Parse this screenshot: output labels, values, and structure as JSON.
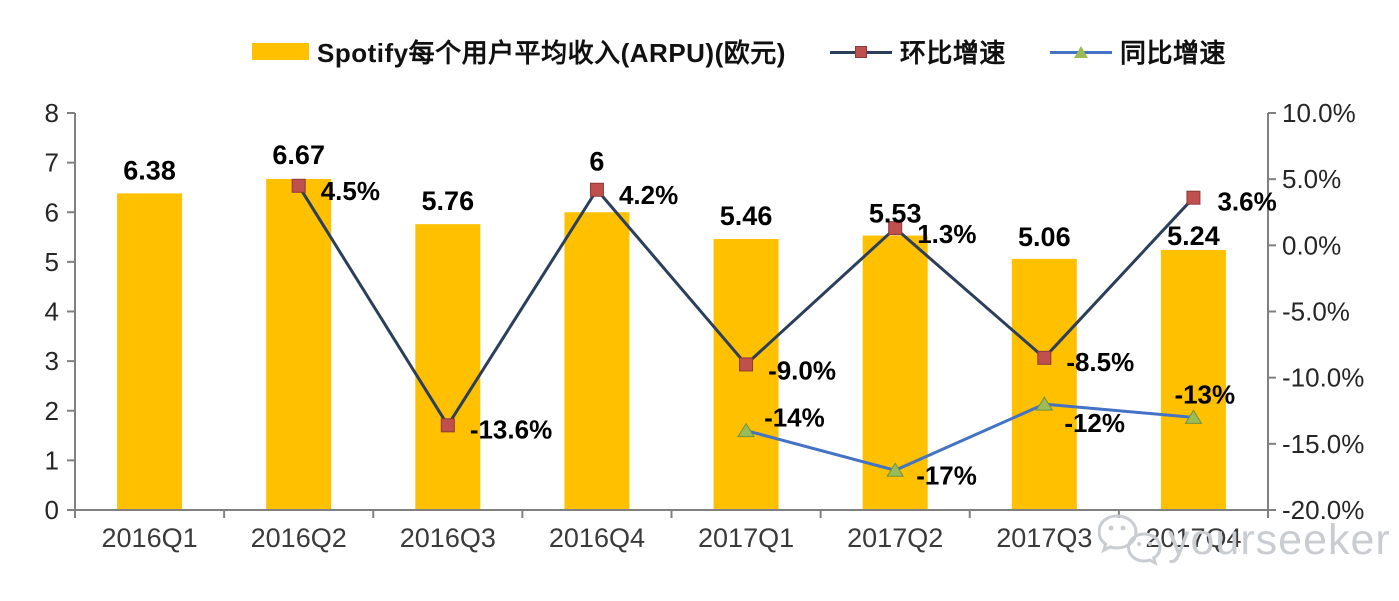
{
  "legend": {
    "items": [
      {
        "label": "Spotify每个用户平均收入(ARPU)(欧元)",
        "swatch": "bar",
        "color": "#FFC000"
      },
      {
        "label": "环比增速",
        "swatch": "line-square",
        "line_color": "#2B3E5C",
        "marker_color": "#C0504D"
      },
      {
        "label": "同比增速",
        "swatch": "line-triangle",
        "line_color": "#4472C4",
        "marker_color": "#9BBB59"
      }
    ]
  },
  "watermark": {
    "text": "yourseeker",
    "icon": "wechat-icon",
    "color": "#c9cdd1"
  },
  "chart_data": {
    "type": "bar",
    "subtype": "combo-bar-line-dual-axis",
    "title": "Spotify每个用户平均收入(ARPU)(欧元)",
    "categories": [
      "2016Q1",
      "2016Q2",
      "2016Q3",
      "2016Q4",
      "2017Q1",
      "2017Q2",
      "2017Q3",
      "2017Q4"
    ],
    "series": [
      {
        "name": "Spotify每个用户平均收入(ARPU)(欧元)",
        "type": "bar",
        "axis": "left",
        "color": "#FFC000",
        "values": [
          6.38,
          6.67,
          5.76,
          6,
          5.46,
          5.53,
          5.06,
          5.24
        ],
        "value_labels": [
          "6.38",
          "6.67",
          "5.76",
          "6",
          "5.46",
          "5.53",
          "5.06",
          "5.24"
        ],
        "label_dy": [
          -14,
          -15,
          -14,
          -42,
          -14,
          -13,
          -13,
          -5
        ]
      },
      {
        "name": "环比增速",
        "type": "line",
        "axis": "right",
        "marker": "square",
        "line_color": "#2B3E5C",
        "marker_color": "#C0504D",
        "marker_stroke": "#8B3A38",
        "values": [
          null,
          4.5,
          -13.6,
          4.2,
          -9.0,
          1.3,
          -8.5,
          3.6
        ],
        "value_labels": [
          null,
          "4.5%",
          "-13.6%",
          "4.2%",
          "-9.0%",
          "1.3%",
          "-8.5%",
          "3.6%"
        ],
        "label_dx": [
          null,
          22,
          22,
          22,
          22,
          22,
          22,
          24
        ],
        "label_dy": [
          null,
          14,
          13,
          14,
          15,
          15,
          13,
          13
        ]
      },
      {
        "name": "同比增速",
        "type": "line",
        "axis": "right",
        "marker": "triangle",
        "line_color": "#4472C4",
        "marker_color": "#9BBB59",
        "marker_stroke": "#71933B",
        "values": [
          null,
          null,
          null,
          null,
          -14,
          -17,
          -12,
          -13
        ],
        "value_labels": [
          null,
          null,
          null,
          null,
          "-14%",
          "-17%",
          "-12%",
          "-13%"
        ],
        "label_dx": [
          null,
          null,
          null,
          null,
          18,
          21,
          20,
          -19
        ],
        "label_dy": [
          null,
          null,
          null,
          null,
          -4,
          14,
          28,
          -14
        ]
      }
    ],
    "left_axis": {
      "min": 0,
      "max": 8,
      "step": 1,
      "tick_labels": [
        "0",
        "1",
        "2",
        "3",
        "4",
        "5",
        "6",
        "7",
        "8"
      ]
    },
    "right_axis": {
      "min": -20,
      "max": 10,
      "step": 5,
      "tick_labels": [
        "10.0%",
        "5.0%",
        "0.0%",
        "-5.0%",
        "-10.0%",
        "-15.0%",
        "-20.0%"
      ]
    },
    "grid": false,
    "legend_position": "top",
    "axis_color": "#808080",
    "tick_label_color": "#262626"
  }
}
